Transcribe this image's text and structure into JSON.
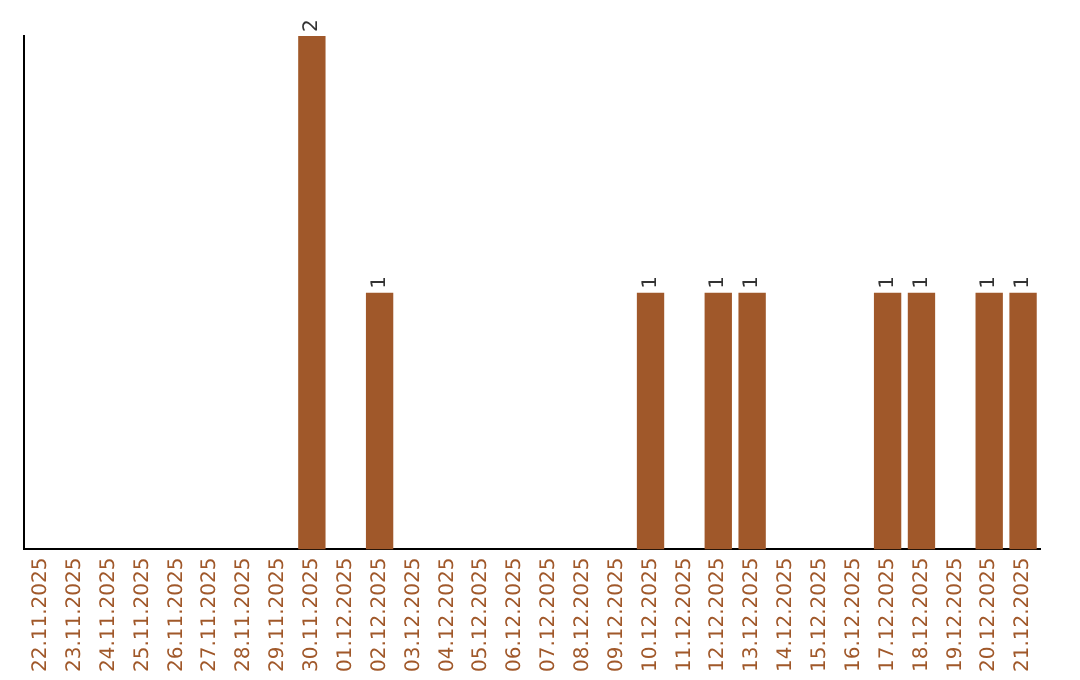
{
  "chart_data": {
    "type": "bar",
    "categories": [
      "22.11.2025",
      "23.11.2025",
      "24.11.2025",
      "25.11.2025",
      "26.11.2025",
      "27.11.2025",
      "28.11.2025",
      "29.11.2025",
      "30.11.2025",
      "01.12.2025",
      "02.12.2025",
      "03.12.2025",
      "04.12.2025",
      "05.12.2025",
      "06.12.2025",
      "07.12.2025",
      "08.12.2025",
      "09.12.2025",
      "10.12.2025",
      "11.12.2025",
      "12.12.2025",
      "13.12.2025",
      "14.12.2025",
      "15.12.2025",
      "16.12.2025",
      "17.12.2025",
      "18.12.2025",
      "19.12.2025",
      "20.12.2025",
      "21.12.2025"
    ],
    "values": [
      0,
      0,
      0,
      0,
      0,
      0,
      0,
      0,
      2,
      0,
      1,
      0,
      0,
      0,
      0,
      0,
      0,
      0,
      1,
      0,
      1,
      1,
      0,
      0,
      0,
      1,
      1,
      0,
      1,
      1
    ],
    "value_labels": [
      null,
      null,
      null,
      null,
      null,
      null,
      null,
      null,
      "2",
      null,
      "1",
      null,
      null,
      null,
      null,
      null,
      null,
      null,
      "1",
      null,
      "1",
      "1",
      null,
      null,
      null,
      "1",
      "1",
      null,
      "1",
      "1"
    ],
    "color": "#a0582a",
    "grid": false,
    "legend": false,
    "tick_labels": "x"
  }
}
